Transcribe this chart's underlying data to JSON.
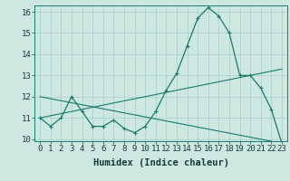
{
  "xlabel": "Humidex (Indice chaleur)",
  "x_values": [
    0,
    1,
    2,
    3,
    4,
    5,
    6,
    7,
    8,
    9,
    10,
    11,
    12,
    13,
    14,
    15,
    16,
    17,
    18,
    19,
    20,
    21,
    22,
    23
  ],
  "y_main": [
    11.0,
    10.6,
    11.0,
    12.0,
    11.3,
    10.6,
    10.6,
    10.9,
    10.5,
    10.3,
    10.6,
    11.3,
    12.3,
    13.1,
    14.4,
    15.7,
    16.2,
    15.8,
    15.0,
    13.0,
    13.0,
    12.4,
    11.4,
    9.8
  ],
  "y_line1_start": 11.0,
  "y_line1_end": 13.3,
  "y_line2_start": 12.0,
  "y_line2_end": 9.8,
  "ylim": [
    10,
    16
  ],
  "yticks": [
    10,
    11,
    12,
    13,
    14,
    15,
    16
  ],
  "xlim": [
    -0.5,
    23.5
  ],
  "line_color": "#1a7a6e",
  "bg_color": "#cce8e0",
  "grid_color": "#aacccc",
  "tick_label_fontsize": 6.5,
  "axis_label_fontsize": 7.5
}
